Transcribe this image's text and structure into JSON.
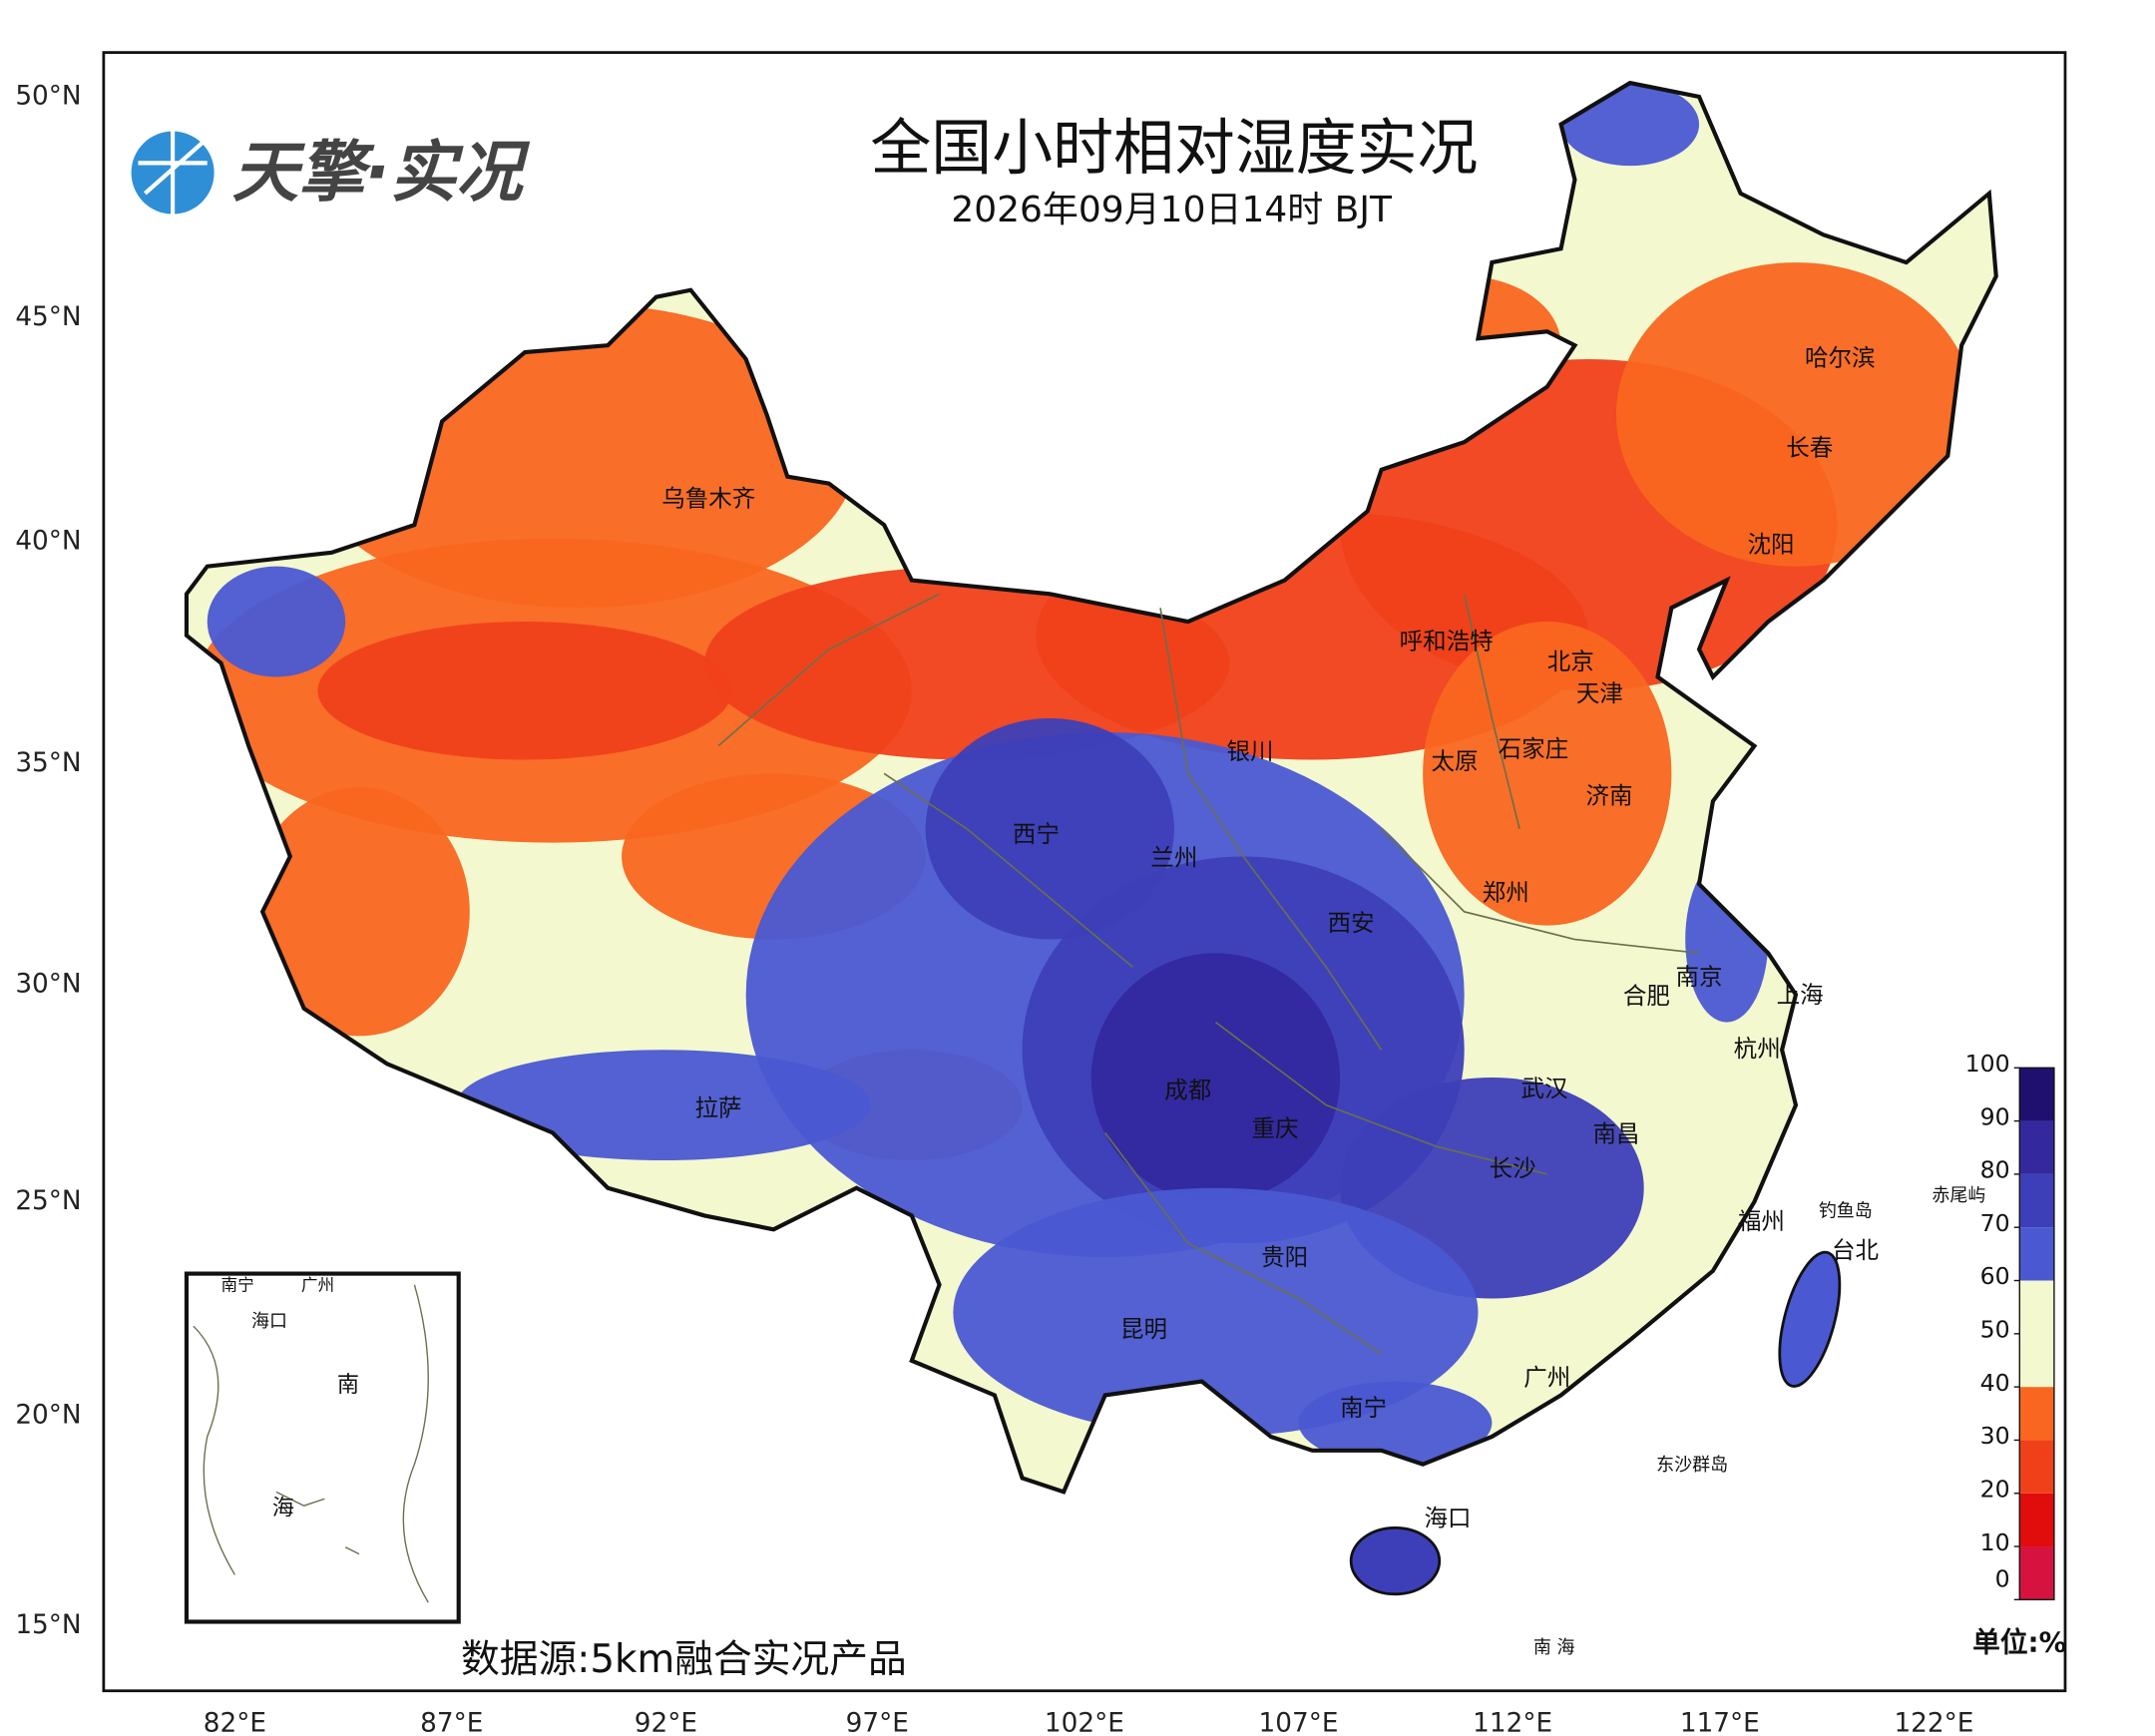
{
  "header": {
    "logo": "天擎·实况",
    "title": "全国小时相对湿度实况",
    "subtitle": "2026年09月10日14时 BJT"
  },
  "latitude_labels": [
    "50°N",
    "45°N",
    "40°N",
    "35°N",
    "30°N",
    "25°N",
    "20°N",
    "15°N"
  ],
  "longitude_labels": [
    "82°E",
    "87°E",
    "92°E",
    "97°E",
    "102°E",
    "107°E",
    "112°E",
    "117°E",
    "122°E"
  ],
  "cities": [
    "乌鲁木齐",
    "哈尔滨",
    "长春",
    "沈阳",
    "呼和浩特",
    "北京",
    "天津",
    "银川",
    "石家庄",
    "太原",
    "济南",
    "西宁",
    "兰州",
    "郑州",
    "西安",
    "南京",
    "合肥",
    "上海",
    "杭州",
    "武汉",
    "成都",
    "拉萨",
    "重庆",
    "南昌",
    "长沙",
    "福州",
    "台北",
    "贵阳",
    "昆明",
    "广州",
    "南宁",
    "海口"
  ],
  "islands": [
    "钓鱼岛",
    "赤尾屿",
    "东沙群岛",
    "南 海"
  ],
  "inset": {
    "labels": [
      "南宁",
      "广州",
      "海口",
      "南",
      "海"
    ]
  },
  "colorbar": {
    "ticks": [
      0,
      10,
      20,
      30,
      40,
      50,
      60,
      70,
      80,
      90,
      100
    ],
    "colors": [
      "#d6123f",
      "#e10c0c",
      "#f0401a",
      "#f9661f",
      "#f3f8cf",
      "#f3f8cf",
      "#4a58d2",
      "#3d3fb8",
      "#33289e",
      "#1f0f6e"
    ],
    "unit": "单位:%"
  },
  "source": "数据源:5km融合实况产品"
}
